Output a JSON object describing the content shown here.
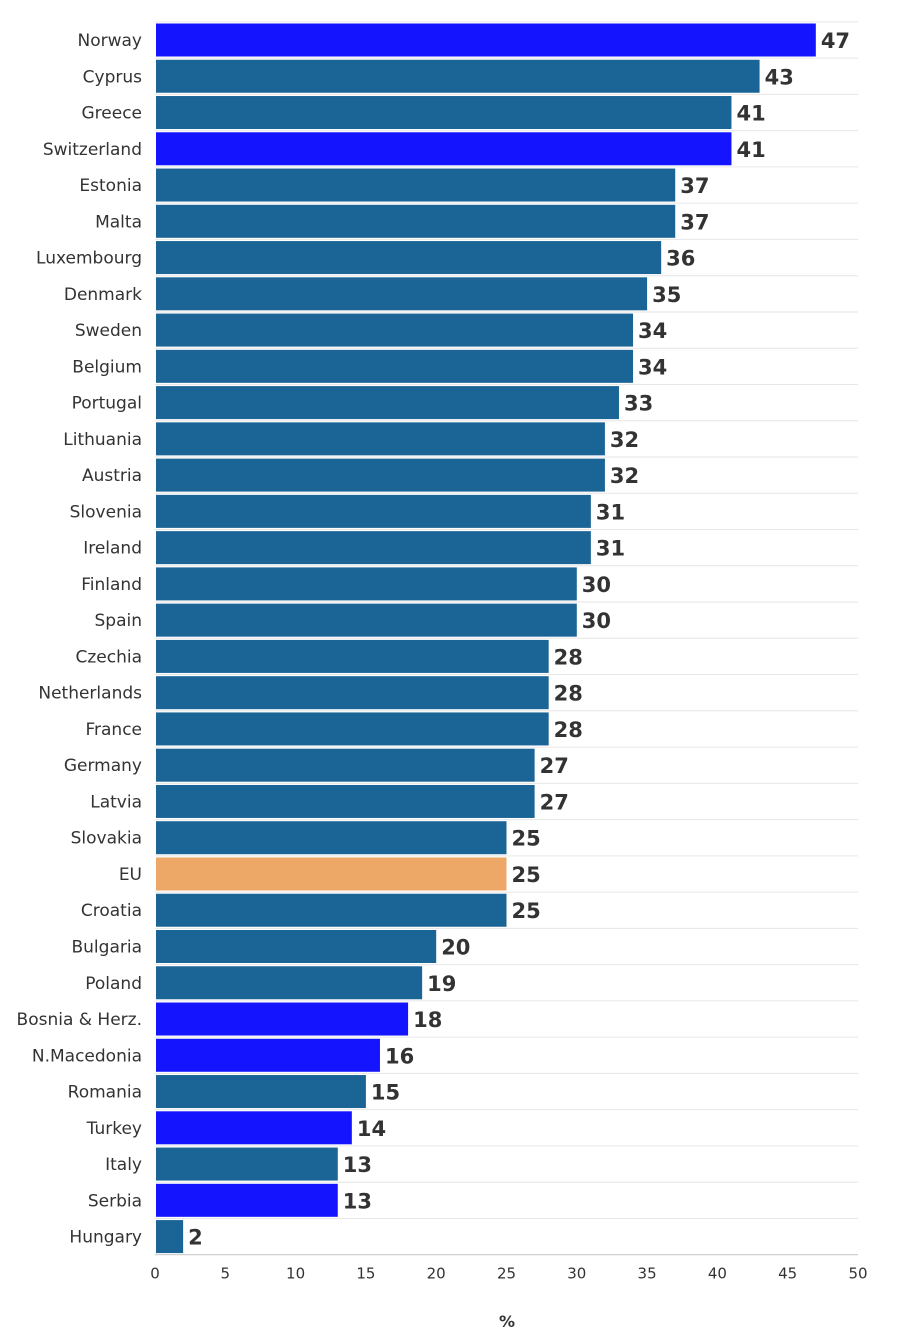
{
  "chart_data": {
    "type": "bar",
    "orientation": "horizontal",
    "title": "",
    "xlabel": "%",
    "ylabel": "",
    "xlim": [
      0,
      50
    ],
    "xticks": [
      0,
      5,
      10,
      15,
      20,
      25,
      30,
      35,
      40,
      45,
      50
    ],
    "grid": true,
    "colors": {
      "eu_member": "#1b6596",
      "non_eu": "#1414ff",
      "eu_average": "#eda868"
    },
    "bars": [
      {
        "label": "Norway",
        "value": 47,
        "group": "non_eu"
      },
      {
        "label": "Cyprus",
        "value": 43,
        "group": "eu_member"
      },
      {
        "label": "Greece",
        "value": 41,
        "group": "eu_member"
      },
      {
        "label": "Switzerland",
        "value": 41,
        "group": "non_eu"
      },
      {
        "label": "Estonia",
        "value": 37,
        "group": "eu_member"
      },
      {
        "label": "Malta",
        "value": 37,
        "group": "eu_member"
      },
      {
        "label": "Luxembourg",
        "value": 36,
        "group": "eu_member"
      },
      {
        "label": "Denmark",
        "value": 35,
        "group": "eu_member"
      },
      {
        "label": "Sweden",
        "value": 34,
        "group": "eu_member"
      },
      {
        "label": "Belgium",
        "value": 34,
        "group": "eu_member"
      },
      {
        "label": "Portugal",
        "value": 33,
        "group": "eu_member"
      },
      {
        "label": "Lithuania",
        "value": 32,
        "group": "eu_member"
      },
      {
        "label": "Austria",
        "value": 32,
        "group": "eu_member"
      },
      {
        "label": "Slovenia",
        "value": 31,
        "group": "eu_member"
      },
      {
        "label": "Ireland",
        "value": 31,
        "group": "eu_member"
      },
      {
        "label": "Finland",
        "value": 30,
        "group": "eu_member"
      },
      {
        "label": "Spain",
        "value": 30,
        "group": "eu_member"
      },
      {
        "label": "Czechia",
        "value": 28,
        "group": "eu_member"
      },
      {
        "label": "Netherlands",
        "value": 28,
        "group": "eu_member"
      },
      {
        "label": "France",
        "value": 28,
        "group": "eu_member"
      },
      {
        "label": "Germany",
        "value": 27,
        "group": "eu_member"
      },
      {
        "label": "Latvia",
        "value": 27,
        "group": "eu_member"
      },
      {
        "label": "Slovakia",
        "value": 25,
        "group": "eu_member"
      },
      {
        "label": "EU",
        "value": 25,
        "group": "eu_average"
      },
      {
        "label": "Croatia",
        "value": 25,
        "group": "eu_member"
      },
      {
        "label": "Bulgaria",
        "value": 20,
        "group": "eu_member"
      },
      {
        "label": "Poland",
        "value": 19,
        "group": "eu_member"
      },
      {
        "label": "Bosnia & Herz.",
        "value": 18,
        "group": "non_eu"
      },
      {
        "label": "N.Macedonia",
        "value": 16,
        "group": "non_eu"
      },
      {
        "label": "Romania",
        "value": 15,
        "group": "eu_member"
      },
      {
        "label": "Turkey",
        "value": 14,
        "group": "non_eu"
      },
      {
        "label": "Italy",
        "value": 13,
        "group": "eu_member"
      },
      {
        "label": "Serbia",
        "value": 13,
        "group": "non_eu"
      },
      {
        "label": "Hungary",
        "value": 2,
        "group": "eu_member"
      }
    ]
  }
}
